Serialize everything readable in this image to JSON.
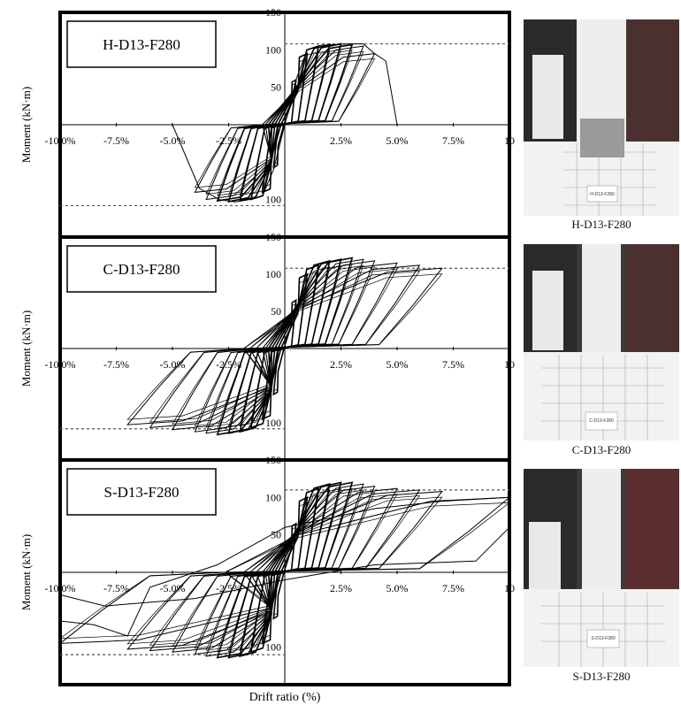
{
  "figure": {
    "xlabel": "Drift ratio (%)",
    "ylabel": "Moment (kN·m)",
    "x_tick_labels": [
      "-10.0%",
      "-7.5%",
      "-5.0%",
      "-2.5%",
      "",
      "2.5%",
      "5.0%",
      "7.5%",
      "10"
    ],
    "y_tick_labels": [
      "150",
      "100",
      "50",
      "",
      "100"
    ]
  },
  "photos": [
    {
      "caption": "H-D13-F280",
      "sign_text": "H-D13-F280"
    },
    {
      "caption": "C-D13-F280",
      "sign_text": "C-D13-F280"
    },
    {
      "caption": "S-D13-F280",
      "sign_text": "S-D13-F280"
    }
  ],
  "chart_data": [
    {
      "type": "line",
      "legend_label": "H-D13-F280",
      "xlim": [
        -10,
        10
      ],
      "ylim": [
        -150,
        150
      ],
      "x_unit": "%",
      "grid": false,
      "capacity_lines": [
        108,
        -108
      ],
      "envelope": {
        "x": [
          -5.0,
          -3.8,
          -2.9,
          -2.2,
          -1.6,
          -1.0,
          -0.5,
          0,
          0.5,
          1.0,
          1.6,
          2.2,
          2.9,
          3.5,
          4.0,
          4.5,
          5.0
        ],
        "y": [
          0,
          -85,
          -100,
          -103,
          -100,
          -95,
          -60,
          0,
          60,
          100,
          106,
          107,
          108,
          108,
          95,
          85,
          0
        ]
      },
      "peak_drifts": [
        0.5,
        1.0,
        1.5,
        2.0,
        2.5,
        3.0,
        3.5,
        4.0
      ],
      "peak_moments": [
        60,
        95,
        105,
        107,
        108,
        107,
        105,
        95
      ]
    },
    {
      "type": "line",
      "legend_label": "C-D13-F280",
      "xlim": [
        -10,
        10
      ],
      "ylim": [
        -150,
        150
      ],
      "x_unit": "%",
      "grid": false,
      "capacity_lines": [
        108,
        -108
      ],
      "peak_drifts": [
        0.5,
        1.0,
        1.5,
        2.0,
        2.5,
        3.0,
        3.5,
        4.0,
        5.0,
        6.0,
        7.0
      ],
      "peak_moments": [
        65,
        100,
        112,
        118,
        120,
        122,
        120,
        118,
        115,
        112,
        108
      ]
    },
    {
      "type": "line",
      "legend_label": "S-D13-F280",
      "xlim": [
        -10,
        10
      ],
      "ylim": [
        -150,
        150
      ],
      "x_unit": "%",
      "grid": false,
      "capacity_lines": [
        110,
        -110
      ],
      "peak_drifts": [
        0.5,
        1.0,
        1.5,
        2.0,
        2.5,
        3.0,
        3.5,
        4.0,
        5.0,
        6.0,
        7.0,
        10.0
      ],
      "peak_moments": [
        65,
        100,
        112,
        118,
        120,
        120,
        118,
        115,
        112,
        110,
        108,
        100
      ]
    }
  ]
}
